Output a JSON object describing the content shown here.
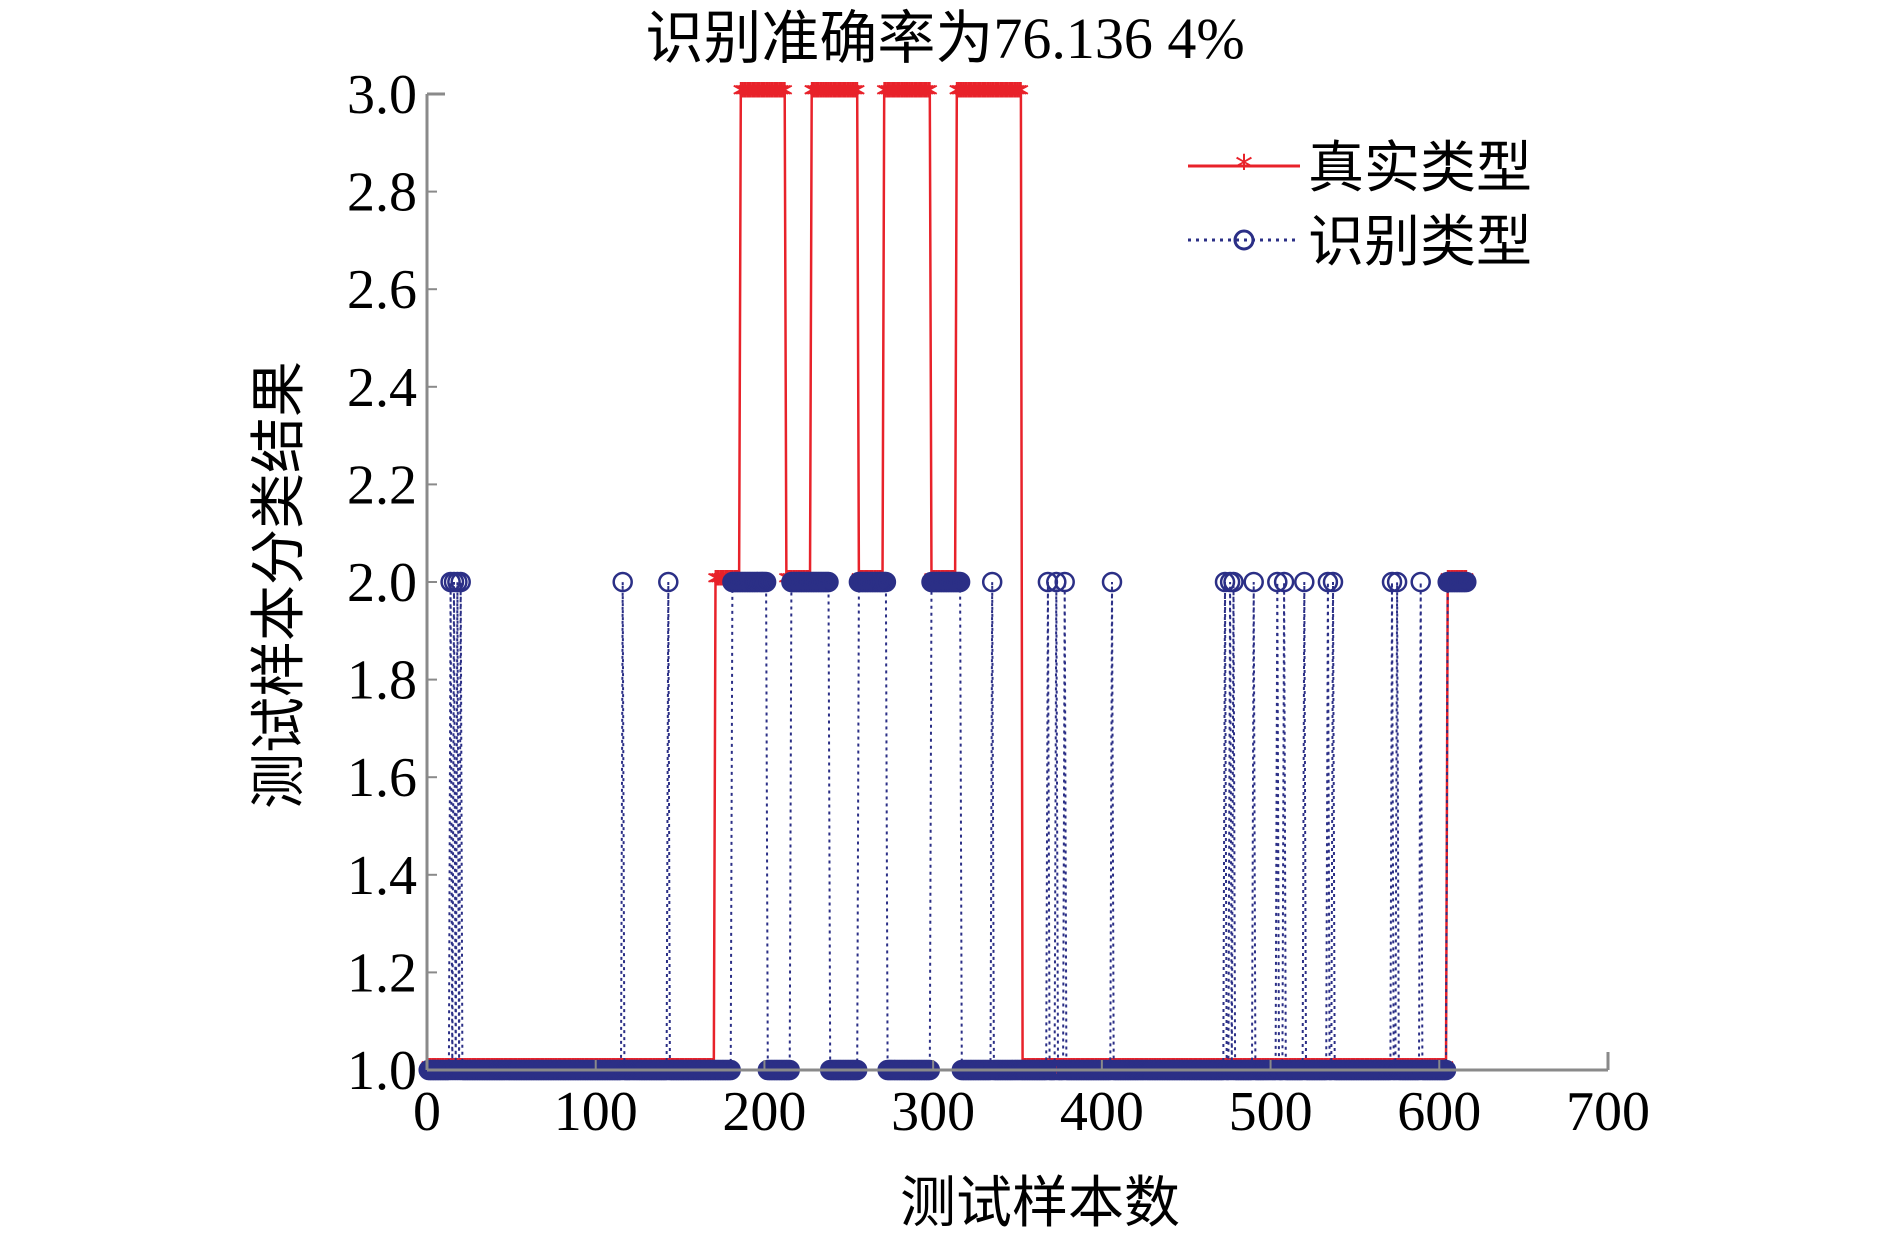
{
  "chart_data": {
    "type": "line",
    "title": "识别准确率为76.136 4%",
    "xlabel": "测试样本数",
    "ylabel": "测试样本分类结果",
    "xlim": [
      0,
      700
    ],
    "ylim": [
      1.0,
      3.0
    ],
    "x_ticks": [
      "0",
      "100",
      "200",
      "300",
      "400",
      "500",
      "600",
      "700"
    ],
    "y_ticks": [
      "1.0",
      "1.2",
      "1.4",
      "1.6",
      "1.8",
      "2.0",
      "2.2",
      "2.4",
      "2.6",
      "2.8",
      "3.0"
    ],
    "grid": false,
    "legend_position": "top-right",
    "series": [
      {
        "name": "真实类型",
        "color": "#e8222a",
        "marker": "asterisk",
        "line_style": "solid",
        "segments": [
          {
            "x_start": 1,
            "x_end": 170,
            "value": 1
          },
          {
            "x_start": 171,
            "x_end": 185,
            "value": 2
          },
          {
            "x_start": 186,
            "x_end": 212,
            "value": 3
          },
          {
            "x_start": 213,
            "x_end": 227,
            "value": 2
          },
          {
            "x_start": 228,
            "x_end": 255,
            "value": 3
          },
          {
            "x_start": 256,
            "x_end": 270,
            "value": 2
          },
          {
            "x_start": 271,
            "x_end": 298,
            "value": 3
          },
          {
            "x_start": 299,
            "x_end": 313,
            "value": 2
          },
          {
            "x_start": 314,
            "x_end": 352,
            "value": 3
          },
          {
            "x_start": 353,
            "x_end": 604,
            "value": 1
          },
          {
            "x_start": 605,
            "x_end": 616,
            "value": 2
          }
        ]
      },
      {
        "name": "识别类型",
        "color": "#2b2f86",
        "marker": "circle",
        "line_style": "dotted",
        "segments": [
          {
            "x_start": 1,
            "x_end": 180,
            "value": 1
          },
          {
            "x_start": 181,
            "x_end": 200,
            "value": 2
          },
          {
            "x_start": 201,
            "x_end": 215,
            "value": 1
          },
          {
            "x_start": 216,
            "x_end": 238,
            "value": 2
          },
          {
            "x_start": 239,
            "x_end": 255,
            "value": 1
          },
          {
            "x_start": 256,
            "x_end": 272,
            "value": 2
          },
          {
            "x_start": 273,
            "x_end": 298,
            "value": 1
          },
          {
            "x_start": 299,
            "x_end": 316,
            "value": 2
          },
          {
            "x_start": 317,
            "x_end": 604,
            "value": 1
          },
          {
            "x_start": 605,
            "x_end": 616,
            "value": 2
          }
        ],
        "spikes_at_2": [
          14,
          16,
          18,
          20,
          116,
          143,
          201,
          335,
          368,
          373,
          378,
          406,
          473,
          476,
          478,
          490,
          504,
          508,
          520,
          534,
          537,
          572,
          575,
          589
        ]
      }
    ]
  }
}
